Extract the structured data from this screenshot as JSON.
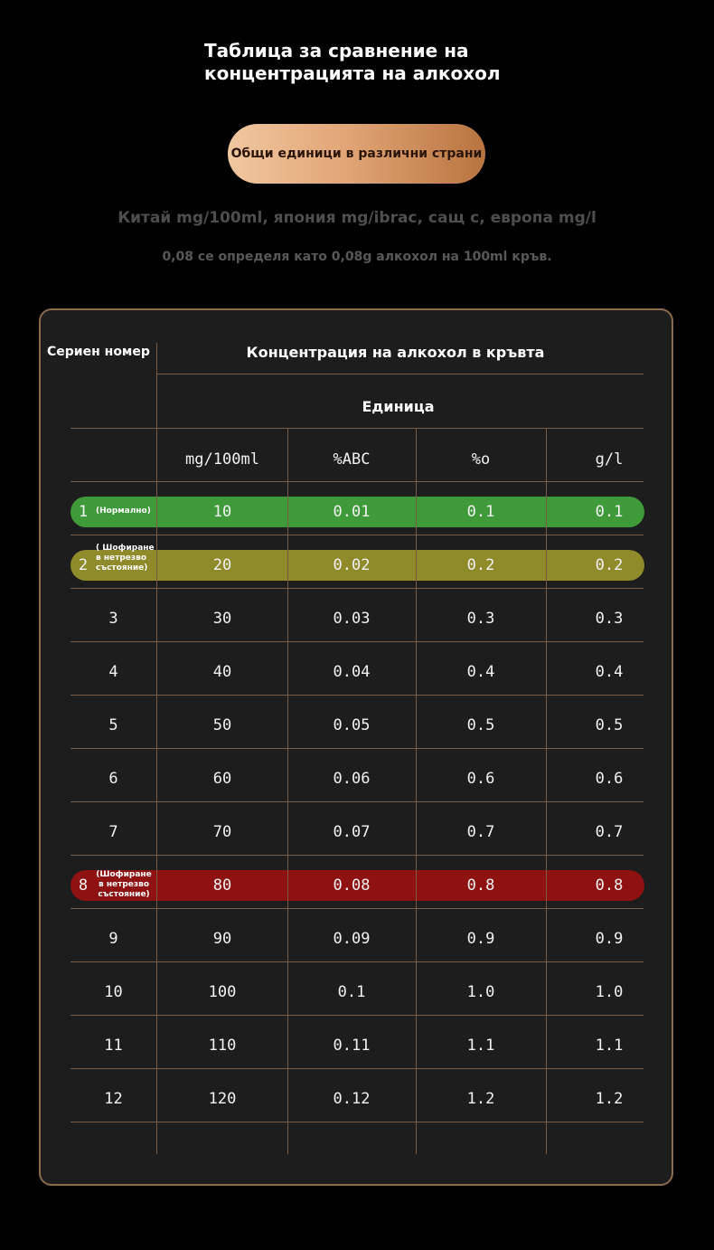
{
  "header": {
    "title_line1": "Таблица за сравнение на",
    "title_line2": "концентрацията на алкохол",
    "pill_label": "Общи единици в различни страни",
    "subtitle_units": "Китай mg/100ml, япония mg/ibrac, сащ c, европа mg/l",
    "subtitle_definition": "0,08 се определя като 0,08g алкохол на 100ml кръв."
  },
  "table": {
    "serial_header": "Сериен номер",
    "concentration_header": "Концентрация на алкохол в кръвта",
    "unit_header": "Единица",
    "columns": [
      "mg/100ml",
      "%ABC",
      "%o",
      "g/l"
    ],
    "rows": [
      {
        "num": "1",
        "note": "(Нормално)",
        "v1": "10",
        "v2": "0.01",
        "v3": "0.1",
        "v4": "0.1"
      },
      {
        "num": "2",
        "note": "( Шофиране в нетрезво състояние)",
        "v1": "20",
        "v2": "0.02",
        "v3": "0.2",
        "v4": "0.2"
      },
      {
        "num": "3",
        "note": "",
        "v1": "30",
        "v2": "0.03",
        "v3": "0.3",
        "v4": "0.3"
      },
      {
        "num": "4",
        "note": "",
        "v1": "40",
        "v2": "0.04",
        "v3": "0.4",
        "v4": "0.4"
      },
      {
        "num": "5",
        "note": "",
        "v1": "50",
        "v2": "0.05",
        "v3": "0.5",
        "v4": "0.5"
      },
      {
        "num": "6",
        "note": "",
        "v1": "60",
        "v2": "0.06",
        "v3": "0.6",
        "v4": "0.6"
      },
      {
        "num": "7",
        "note": "",
        "v1": "70",
        "v2": "0.07",
        "v3": "0.7",
        "v4": "0.7"
      },
      {
        "num": "8",
        "note": "(Шофиране в нетрезво състояние)",
        "v1": "80",
        "v2": "0.08",
        "v3": "0.8",
        "v4": "0.8"
      },
      {
        "num": "9",
        "note": "",
        "v1": "90",
        "v2": "0.09",
        "v3": "0.9",
        "v4": "0.9"
      },
      {
        "num": "10",
        "note": "",
        "v1": "100",
        "v2": "0.1",
        "v3": "1.0",
        "v4": "1.0"
      },
      {
        "num": "11",
        "note": "",
        "v1": "110",
        "v2": "0.11",
        "v3": "1.1",
        "v4": "1.1"
      },
      {
        "num": "12",
        "note": "",
        "v1": "120",
        "v2": "0.12",
        "v3": "1.2",
        "v4": "1.2"
      }
    ]
  },
  "colors": {
    "normal_band": "#3f9a3a",
    "drunk_band_low": "#8f8a2a",
    "drunk_band_high": "#8e1212",
    "accent_pill": "#e2a677",
    "grid_line": "#7a5c44"
  }
}
